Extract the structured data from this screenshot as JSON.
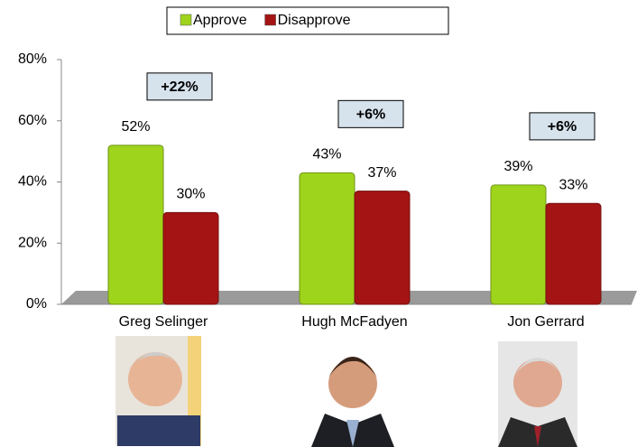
{
  "chart_data": {
    "type": "bar",
    "categories": [
      "Greg Selinger",
      "Hugh McFadyen",
      "Jon Gerrard"
    ],
    "series": [
      {
        "name": "Approve",
        "color": "#9fd41c",
        "values": [
          52,
          43,
          39
        ],
        "value_labels": [
          "52%",
          "43%",
          "39%"
        ]
      },
      {
        "name": "Disapprove",
        "color": "#a41414",
        "values": [
          30,
          37,
          33
        ],
        "value_labels": [
          "30%",
          "37%",
          "33%"
        ]
      }
    ],
    "annotations": [
      "+22%",
      "+6%",
      "+6%"
    ],
    "ylim": [
      0,
      80
    ],
    "yticks": [
      {
        "value": 0,
        "label": "0%"
      },
      {
        "value": 20,
        "label": "20%"
      },
      {
        "value": 40,
        "label": "40%"
      },
      {
        "value": 60,
        "label": "60%"
      },
      {
        "value": 80,
        "label": "80%"
      }
    ],
    "legend": "top"
  }
}
